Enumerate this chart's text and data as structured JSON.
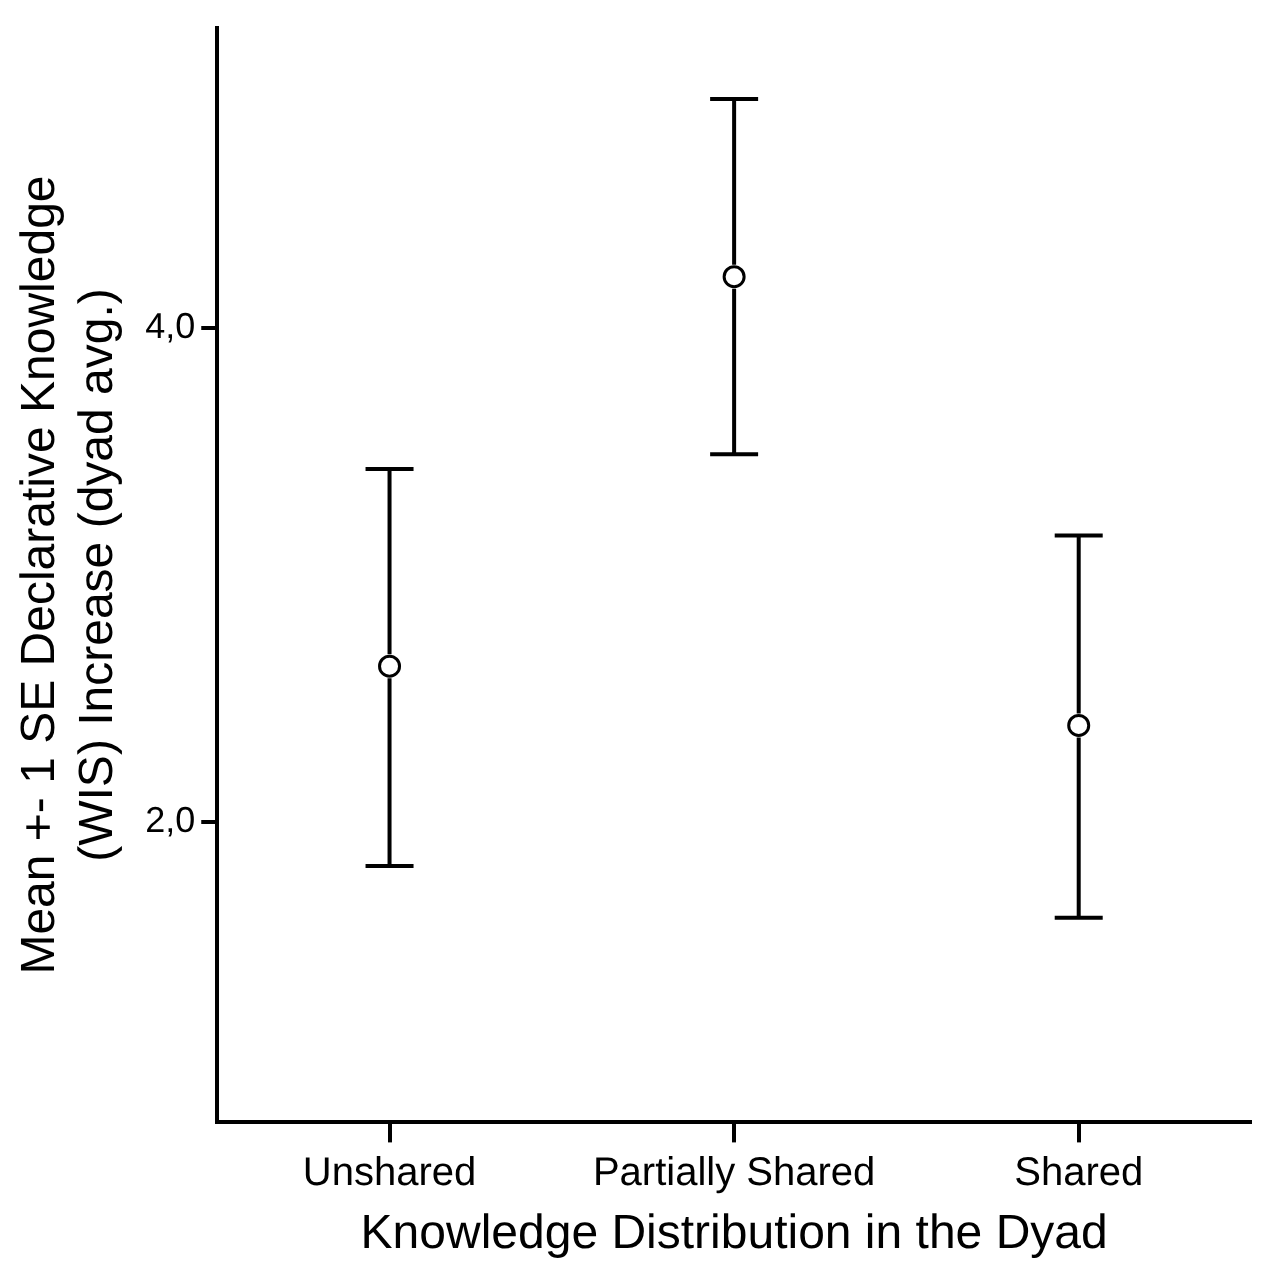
{
  "chart_data": {
    "type": "scatter",
    "xlabel": "Knowledge Distribution in the Dyad",
    "ylabel": "Mean +- 1 SE Declarative Knowledge\n(WIS) Increase (dyad avg.)",
    "categories": [
      "Unshared",
      "Partially Shared",
      "Shared"
    ],
    "series": [
      {
        "color": "#000000",
        "values": [
          2.63,
          4.21,
          2.39
        ],
        "errors": [
          [
            1.82,
            3.43
          ],
          [
            3.49,
            4.93
          ],
          [
            1.61,
            3.16
          ]
        ]
      }
    ],
    "ylim": [
      0.78,
      5.22
    ],
    "yticks": [
      {
        "value": 2,
        "label": "2,0"
      },
      {
        "value": 4,
        "label": "4,0"
      }
    ],
    "marker": "circle",
    "grid": false,
    "legend": false
  }
}
